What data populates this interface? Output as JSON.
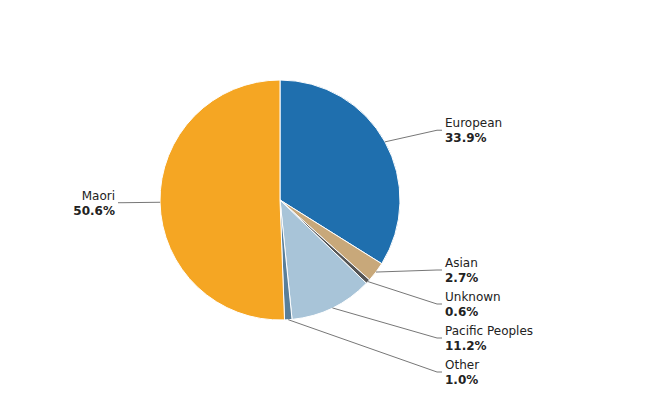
{
  "chart_data": {
    "type": "pie",
    "categories": [
      "European",
      "Asian",
      "Unknown",
      "Pacific Peoples",
      "Other",
      "Maori"
    ],
    "values": [
      33.9,
      2.7,
      0.6,
      11.2,
      1.0,
      50.6
    ],
    "value_labels": [
      "33.9%",
      "2.7%",
      "0.6%",
      "11.2%",
      "1.0%",
      "50.6%"
    ],
    "colors": [
      "#1F6FAE",
      "#C8A87A",
      "#555555",
      "#A8C4D8",
      "#5A7F9A",
      "#F5A623"
    ],
    "data_labels": true
  }
}
